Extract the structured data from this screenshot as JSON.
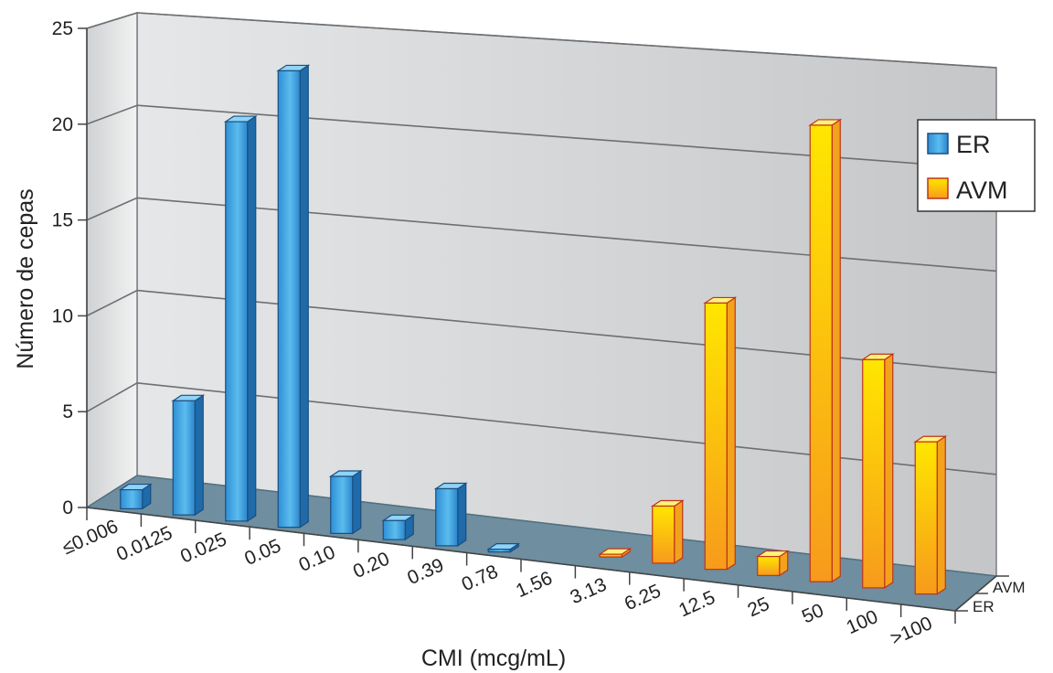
{
  "chart_data": {
    "type": "bar",
    "title": "",
    "xlabel": "CMI (mcg/mL)",
    "ylabel": "Número de cepas",
    "ylim": [
      0,
      25
    ],
    "yticks": [
      "0",
      "5",
      "10",
      "15",
      "20",
      "25"
    ],
    "grid": true,
    "legend_position": "right",
    "categories": [
      "≤0.006",
      "0.0125",
      "0.025",
      "0.05",
      "0.10",
      "0.20",
      "0.39",
      "0.78",
      "1.56",
      "3.13",
      "6.25",
      "12.5",
      "25",
      "50",
      "100",
      ">100"
    ],
    "depth_labels": [
      "AVM",
      "ER"
    ],
    "series": [
      {
        "name": "ER",
        "color": "#2b8fd6",
        "values": [
          1,
          6,
          21,
          24,
          3,
          1,
          3,
          0,
          0,
          0,
          0,
          0,
          0,
          0,
          0,
          0
        ]
      },
      {
        "name": "AVM",
        "color": "#fbb516",
        "values": [
          0,
          0,
          0,
          0,
          0,
          0,
          0,
          0,
          0,
          0,
          3,
          14,
          1,
          24,
          12,
          8
        ]
      }
    ]
  }
}
